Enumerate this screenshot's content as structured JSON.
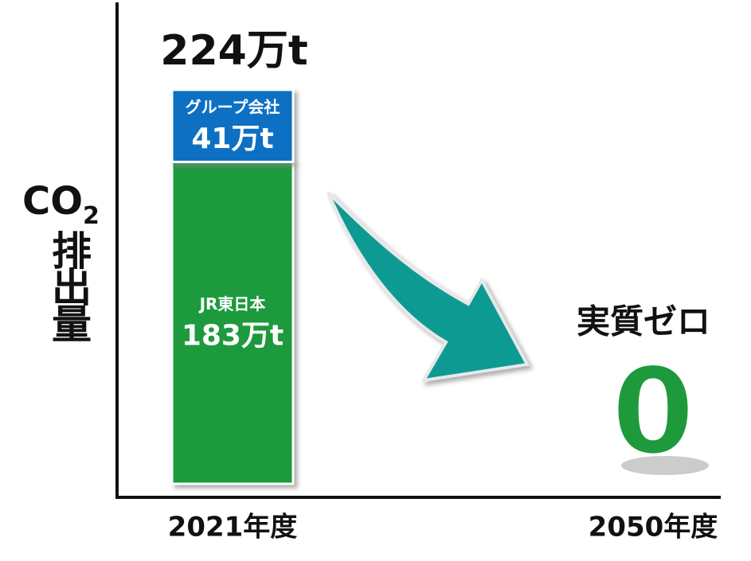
{
  "chart_data": {
    "type": "stacked-bar",
    "categories": [
      "2021年度",
      "2050年度"
    ],
    "series": [
      {
        "name": "JR東日本",
        "color": "#1e9a3c",
        "values": [
          183,
          null
        ],
        "value_labels": [
          "183万t",
          null
        ]
      },
      {
        "name": "グループ会社",
        "color": "#1170c3",
        "values": [
          41,
          null
        ],
        "value_labels": [
          "41万t",
          null
        ]
      }
    ],
    "totals": [
      224,
      0
    ],
    "total_labels": [
      "224万t",
      "0"
    ],
    "total_color": "#1e9a3c",
    "annotation": "実質ゼロ",
    "y_label": {
      "main": "CO",
      "sub": "2",
      "vertical": "排出量"
    },
    "ylim": [
      0,
      266
    ]
  }
}
